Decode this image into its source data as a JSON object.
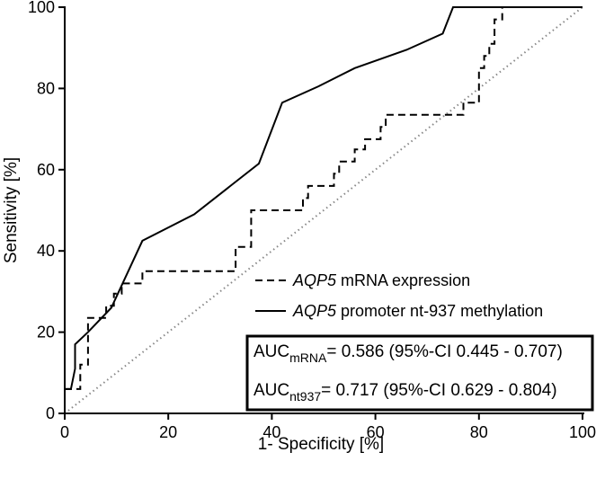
{
  "chart_data": {
    "type": "line",
    "xlabel": "1- Specificity [%]",
    "ylabel": "Sensitivity [%]",
    "xlim": [
      0,
      100
    ],
    "ylim": [
      0,
      100
    ],
    "x_ticks": [
      "0",
      "20",
      "40",
      "60",
      "80",
      "100"
    ],
    "y_ticks": [
      "0",
      "20",
      "40",
      "60",
      "80",
      "100"
    ],
    "grid": false,
    "legend_position": "bottom-right",
    "series": [
      {
        "name_italic": "AQP5",
        "name_rest": " mRNA expression",
        "style": "dashed",
        "color": "#000000",
        "x": [
          0,
          3,
          3,
          4.5,
          4.5,
          8,
          8,
          9.5,
          9.5,
          11,
          11,
          15,
          15,
          33,
          33,
          36,
          36,
          46,
          46,
          47,
          47,
          52,
          52,
          53,
          53,
          56,
          56,
          58,
          58,
          61,
          61,
          62,
          62,
          77,
          77,
          80,
          80,
          81,
          81,
          82,
          82,
          83,
          83,
          84.5,
          84.5,
          86
        ],
        "y": [
          6,
          6,
          12,
          12,
          23.5,
          23.5,
          26.5,
          26.5,
          29.5,
          29.5,
          32,
          32,
          35,
          35,
          41,
          41,
          50,
          50,
          53,
          53,
          56,
          56,
          59,
          59,
          62,
          62,
          65,
          65,
          67.5,
          67.5,
          70.5,
          70.5,
          73.5,
          73.5,
          76.5,
          76.5,
          85,
          85,
          88,
          88,
          91,
          91,
          97,
          97,
          100,
          100
        ]
      },
      {
        "name_italic": "AQP5",
        "name_rest": " promoter nt-937 methylation",
        "style": "solid",
        "color": "#000000",
        "x": [
          0,
          1.2,
          2,
          2,
          4.5,
          9,
          15,
          25,
          32,
          37.5,
          42,
          49,
          56,
          66,
          73,
          75,
          100
        ],
        "y": [
          6,
          6,
          11,
          17,
          20,
          26,
          42.5,
          49,
          56,
          61.5,
          76.5,
          80.5,
          85,
          89.5,
          93.5,
          100,
          100
        ]
      },
      {
        "style": "dotted",
        "color": "#888888",
        "x": [
          0,
          100
        ],
        "y": [
          0,
          100
        ]
      }
    ],
    "annotations": [
      {
        "prefix": "AUC",
        "sub": "mRNA",
        "text": "= 0.586 (95%-CI 0.445 - 0.707)"
      },
      {
        "prefix": "AUC",
        "sub": "nt937",
        "text": "= 0.717 (95%-CI 0.629 - 0.804)"
      }
    ]
  }
}
